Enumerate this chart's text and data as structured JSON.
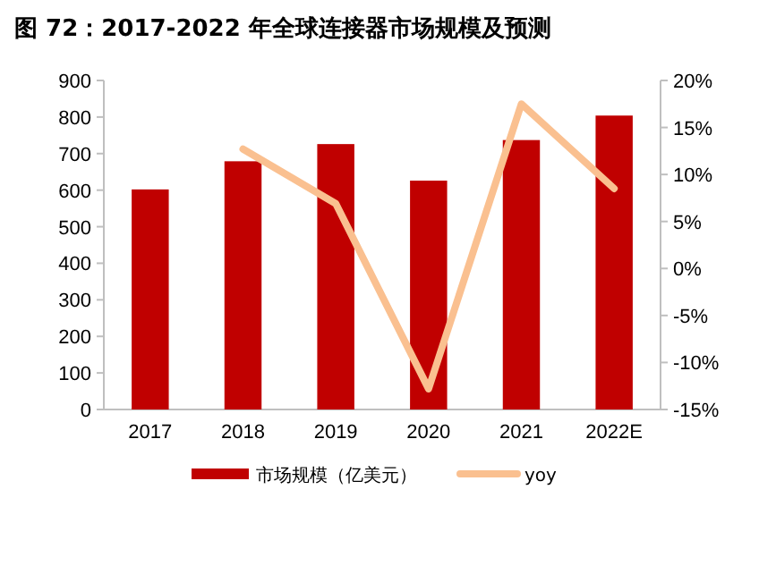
{
  "chart_data": {
    "type": "bar",
    "title": "图 72：2017-2022 年全球连接器市场规模及预测",
    "categories": [
      "2017",
      "2018",
      "2019",
      "2020",
      "2021",
      "2022E"
    ],
    "series": [
      {
        "name": "市场规模（亿美元）",
        "color": "#c00000",
        "values": [
          602,
          679,
          726,
          626,
          737,
          804
        ]
      },
      {
        "name": "yoy",
        "type": "line",
        "axis": "y2",
        "color": "#fac090",
        "marker": "none",
        "values": [
          null,
          12.7,
          6.9,
          -12.8,
          17.5,
          8.5
        ]
      }
    ],
    "ylim": [
      0,
      900
    ],
    "yticks": [
      0,
      100,
      200,
      300,
      400,
      500,
      600,
      700,
      800,
      900
    ],
    "y2lim": [
      -15,
      20
    ],
    "y2ticks": [
      {
        "value": -15,
        "label": "-15%"
      },
      {
        "value": -10,
        "label": "-10%"
      },
      {
        "value": -5,
        "label": "-5%"
      },
      {
        "value": 0,
        "label": "0%"
      },
      {
        "value": 5,
        "label": "5%"
      },
      {
        "value": 10,
        "label": "10%"
      },
      {
        "value": 15,
        "label": "15%"
      },
      {
        "value": 20,
        "label": "20%"
      }
    ],
    "grid": false,
    "legend": "bottom"
  }
}
